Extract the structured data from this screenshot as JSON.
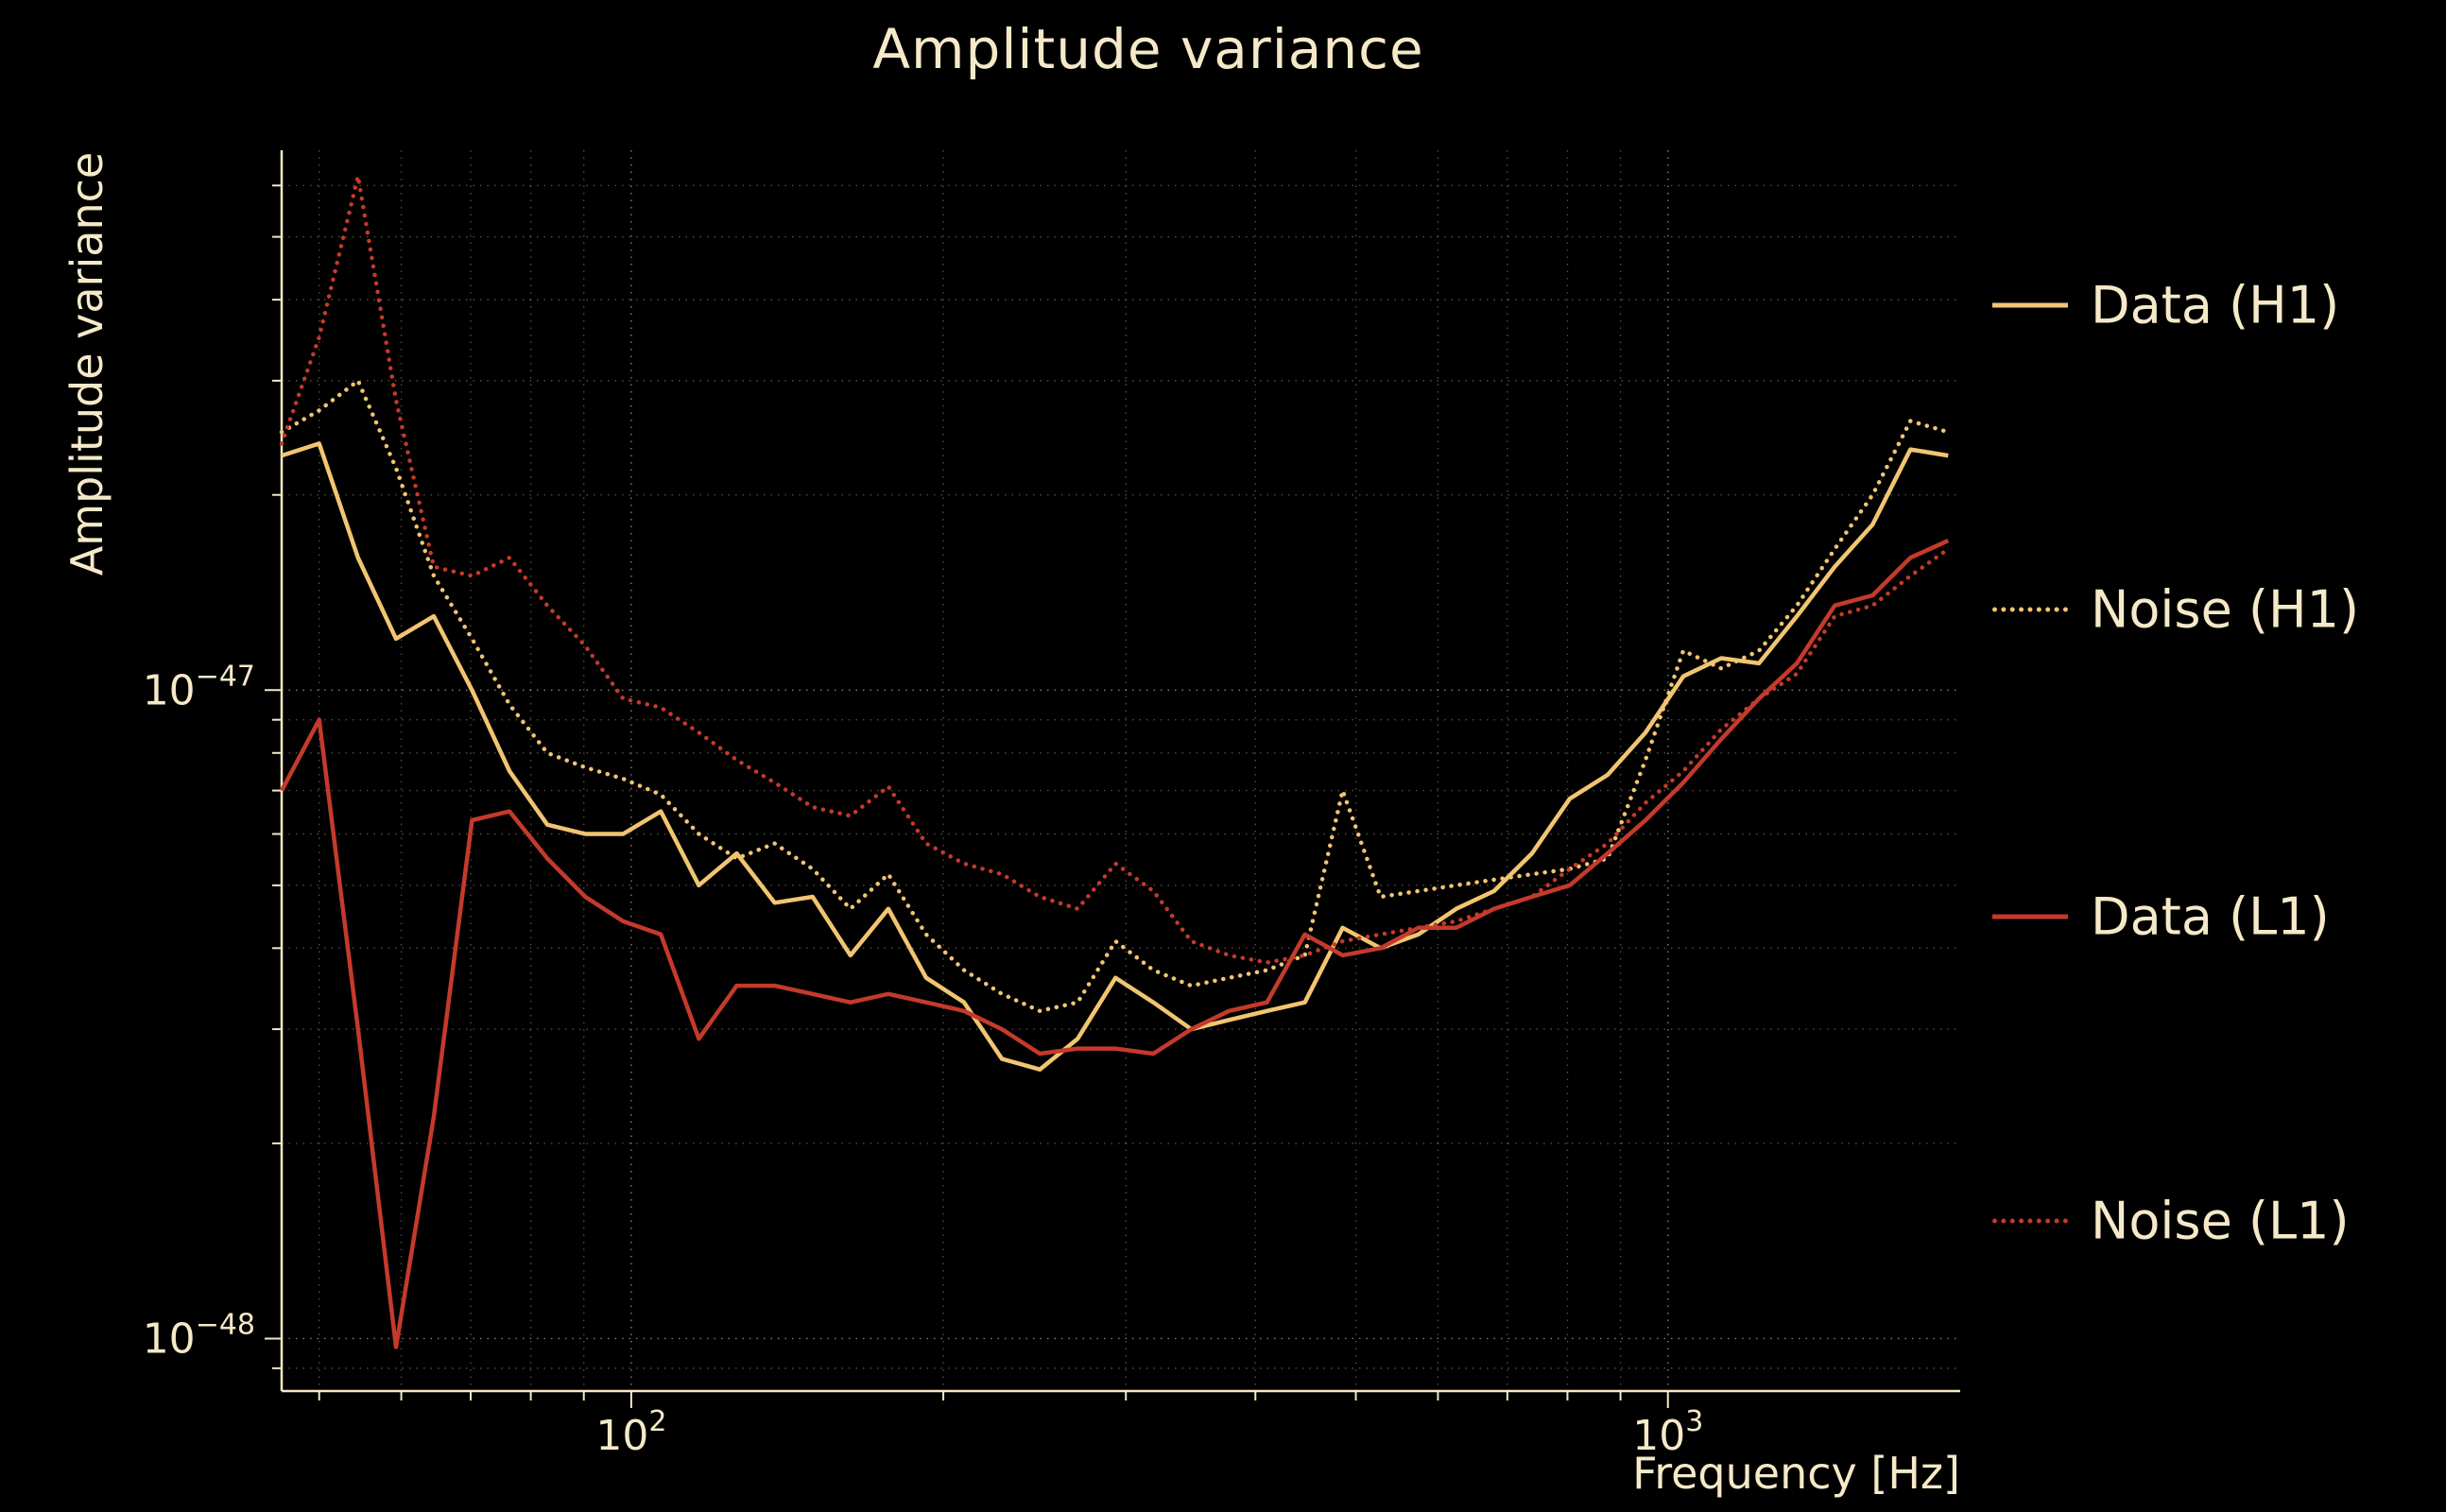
{
  "chart_data": {
    "type": "line",
    "title": "Amplitude variance",
    "xlabel": "Frequency [Hz]",
    "ylabel": "Amplitude variance",
    "x_scale": "log",
    "y_scale": "log",
    "xlim": [
      46,
      1914
    ],
    "ylim": [
      8.3e-49,
      6.8e-47
    ],
    "grid": "dotted major and minor log gridlines, both axes",
    "legend_position": "right, outside axes",
    "background_color": "#000000",
    "text_color": "#f5e9c8",
    "x_ticks": [
      {
        "value": 100,
        "label": "10^2"
      },
      {
        "value": 1000,
        "label": "10^3"
      }
    ],
    "y_ticks": [
      {
        "value": 1e-47,
        "label": "10^−47"
      },
      {
        "value": 1e-48,
        "label": "10^−48"
      }
    ],
    "value_scale": 1e-48,
    "frequencies_hz": [
      46,
      50,
      54.5,
      59.3,
      64.5,
      70.2,
      76.3,
      83,
      90.3,
      98.2,
      106.8,
      116.2,
      126.4,
      137.5,
      149.6,
      162.7,
      177,
      192.5,
      209.4,
      227.8,
      247.8,
      269.5,
      293.2,
      318.9,
      346.9,
      377.3,
      410.4,
      446.4,
      485.6,
      528.2,
      574.5,
      624.9,
      679.7,
      739.3,
      804.1,
      874.6,
      951.3,
      1034.8,
      1125.5,
      1224.2,
      1331.6,
      1448.4,
      1575.4,
      1713.5,
      1863.8
    ],
    "series": [
      {
        "name": "Data (H1)",
        "style": "solid",
        "color": "#f1c571",
        "values": [
          23,
          24,
          16,
          12,
          13,
          10,
          7.5,
          6.2,
          6.0,
          6.0,
          6.5,
          5.0,
          5.6,
          4.7,
          4.8,
          3.9,
          4.6,
          3.6,
          3.3,
          2.7,
          2.6,
          2.9,
          3.6,
          3.3,
          3.0,
          3.1,
          3.2,
          3.3,
          4.3,
          4.0,
          4.2,
          4.6,
          4.9,
          5.6,
          6.8,
          7.4,
          8.6,
          10.5,
          11.2,
          11.0,
          13.0,
          15.5,
          18.0,
          23.5,
          23.0
        ]
      },
      {
        "name": "Noise (H1)",
        "style": "dotted",
        "color": "#f1c571",
        "values": [
          25,
          27,
          30,
          22,
          15,
          12,
          9.5,
          8.0,
          7.6,
          7.3,
          6.9,
          6.0,
          5.5,
          5.8,
          5.3,
          4.6,
          5.2,
          4.2,
          3.7,
          3.4,
          3.2,
          3.3,
          4.1,
          3.7,
          3.5,
          3.6,
          3.7,
          3.9,
          7.0,
          4.8,
          4.9,
          5.0,
          5.1,
          5.2,
          5.3,
          5.5,
          7.8,
          11.5,
          10.8,
          11.5,
          13.5,
          16.5,
          20.0,
          26.0,
          25.0
        ]
      },
      {
        "name": "Data (L1)",
        "style": "solid",
        "color": "#c43a2b",
        "values": [
          7.0,
          9.0,
          3.0,
          0.97,
          2.2,
          6.3,
          6.5,
          5.5,
          4.8,
          4.4,
          4.2,
          2.9,
          3.5,
          3.5,
          3.4,
          3.3,
          3.4,
          3.3,
          3.2,
          3.0,
          2.75,
          2.8,
          2.8,
          2.75,
          3.0,
          3.2,
          3.3,
          4.2,
          3.9,
          4.0,
          4.3,
          4.3,
          4.6,
          4.8,
          5.0,
          5.6,
          6.3,
          7.2,
          8.4,
          9.7,
          11.0,
          13.5,
          14.0,
          16.0,
          17.0
        ]
      },
      {
        "name": "Noise (L1)",
        "style": "dotted",
        "color": "#c43a2b",
        "values": [
          24,
          35,
          62,
          28,
          15.5,
          15.0,
          16.0,
          13.5,
          11.7,
          9.7,
          9.4,
          8.6,
          7.8,
          7.2,
          6.6,
          6.4,
          7.1,
          5.8,
          5.4,
          5.2,
          4.8,
          4.6,
          5.4,
          4.9,
          4.1,
          3.9,
          3.8,
          3.9,
          4.1,
          4.2,
          4.3,
          4.4,
          4.6,
          4.8,
          5.3,
          5.8,
          6.7,
          7.5,
          8.7,
          9.7,
          10.6,
          13.0,
          13.5,
          15.0,
          16.5
        ]
      }
    ]
  }
}
